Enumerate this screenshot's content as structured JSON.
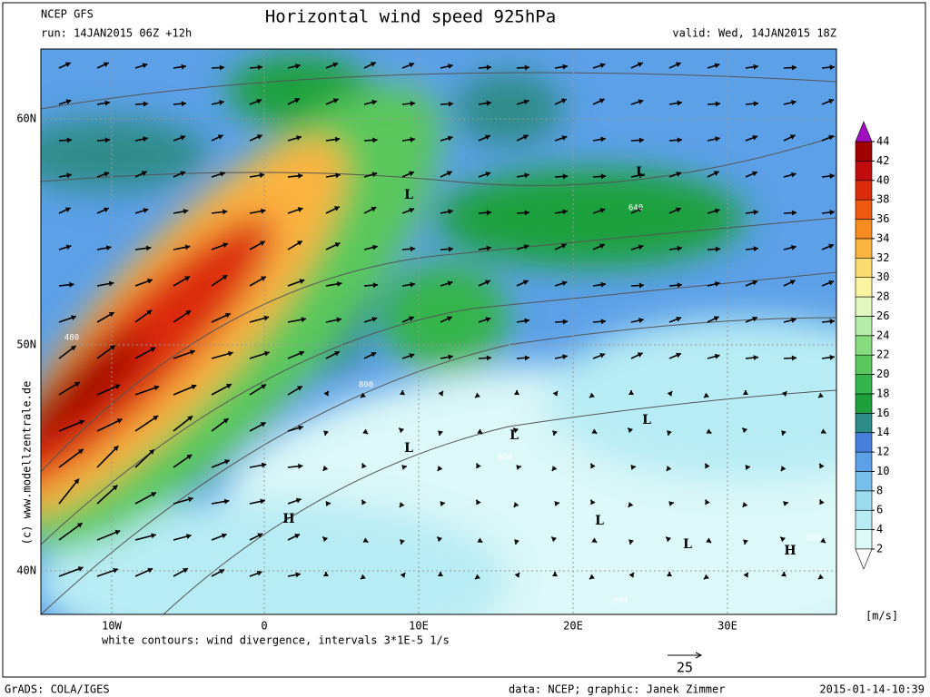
{
  "header": {
    "model": "NCEP GFS",
    "title": "Horizontal wind speed 925hPa",
    "run": "run: 14JAN2015 06Z +12h",
    "valid": "valid: Wed, 14JAN2015 18Z"
  },
  "map": {
    "lat_labels": [
      "60N",
      "50N",
      "40N"
    ],
    "lon_labels": [
      "10W",
      "0",
      "10E",
      "20E",
      "30E"
    ],
    "pressure_centers": [
      "L",
      "L",
      "L",
      "L",
      "L",
      "L",
      "L",
      "H",
      "H"
    ],
    "contour_labels": [
      "640",
      "480",
      "800",
      "800",
      "800",
      "800"
    ],
    "credit": "(c)  www.modellzentrale.de",
    "note": "white contours: wind divergence, intervals 3*1E-5 1/s",
    "wind_reference": 25
  },
  "colorbar": {
    "unit": "[m/s]",
    "levels": [
      2,
      4,
      6,
      8,
      10,
      12,
      14,
      16,
      18,
      20,
      22,
      24,
      26,
      28,
      30,
      32,
      34,
      36,
      38,
      40,
      42,
      44
    ],
    "colors": [
      "#dcf8f8",
      "#b8ecf4",
      "#9cdcf0",
      "#78c0ec",
      "#5ca0e8",
      "#4680dc",
      "#2e8c88",
      "#1ea03c",
      "#34b44c",
      "#5ac85c",
      "#88dc80",
      "#b4ecaa",
      "#e0f8c0",
      "#fcf4a0",
      "#fcdc70",
      "#fcb440",
      "#f88c20",
      "#f05a10",
      "#dc2c0c",
      "#c00c0c",
      "#a00000"
    ],
    "under_color": "#ffffff",
    "over_color": "#a010c0"
  },
  "footer": {
    "software": "GrADS: COLA/IGES",
    "source": "data: NCEP; graphic: Janek Zimmer",
    "timestamp": "2015-01-14-10:39"
  }
}
